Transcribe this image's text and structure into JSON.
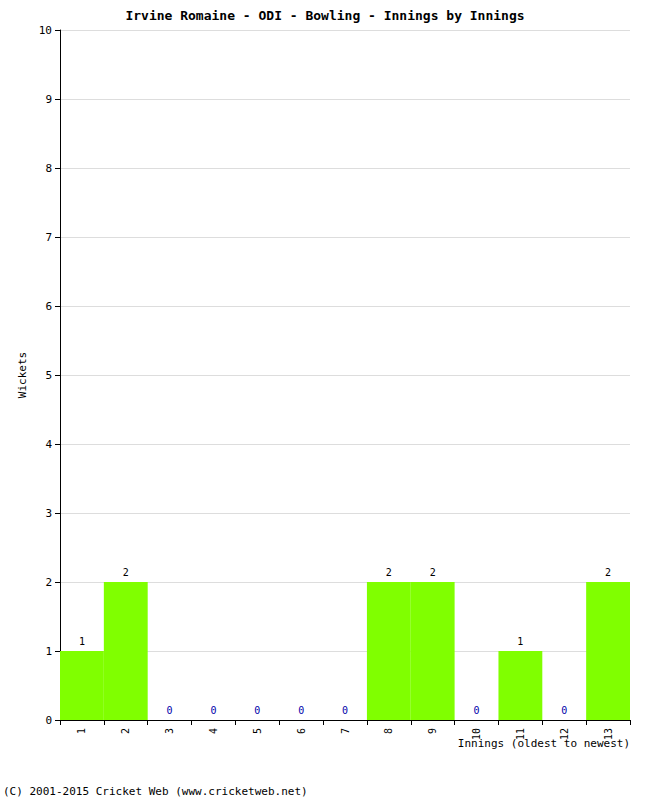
{
  "chart_data": {
    "type": "bar",
    "title": "Irvine Romaine - ODI - Bowling - Innings by Innings",
    "x_label": "Innings (oldest to newest)",
    "y_label": "Wickets",
    "categories": [
      "1",
      "2",
      "3",
      "4",
      "5",
      "6",
      "7",
      "8",
      "9",
      "10",
      "11",
      "12",
      "13"
    ],
    "values": [
      1,
      2,
      0,
      0,
      0,
      0,
      0,
      2,
      2,
      0,
      1,
      0,
      2
    ],
    "color": "#80ff00",
    "ylim": [
      0,
      10
    ],
    "yticks": [
      0,
      1,
      2,
      3,
      4,
      5,
      6,
      7,
      8,
      9,
      10
    ],
    "grid": true,
    "data_labels": true,
    "annotations": [
      "(C) 2001-2015 Cricket Web (www.cricketweb.net)"
    ]
  }
}
